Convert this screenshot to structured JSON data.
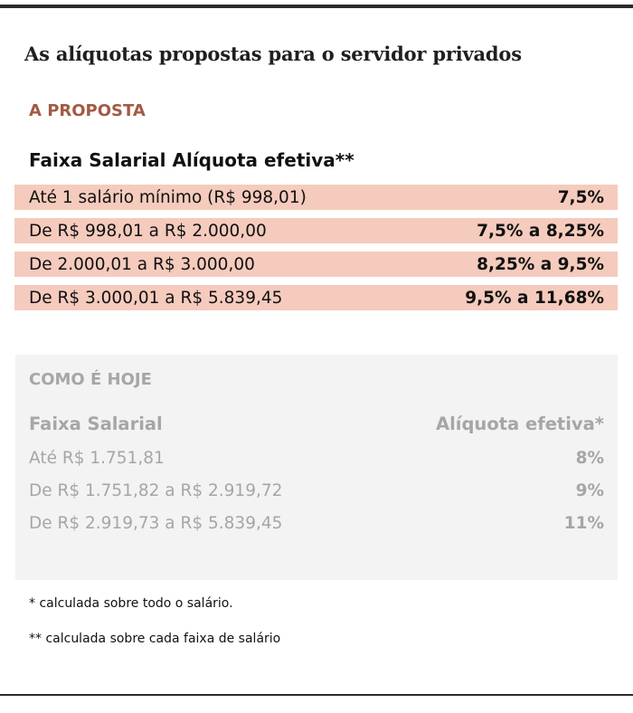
{
  "title": "As alíquotas propostas para o servidor privados",
  "proposal": {
    "label": "A PROPOSTA",
    "header": "Faixa Salarial Alíquota efetiva**",
    "rows": [
      {
        "range": "Até 1 salário mínimo (R$ 998,01)",
        "rate": "7,5%"
      },
      {
        "range": "De R$ 998,01 a R$ 2.000,00",
        "rate": "7,5% a 8,25%"
      },
      {
        "range": "De 2.000,01 a R$ 3.000,00",
        "rate": "8,25% a 9,5%"
      },
      {
        "range": "De R$ 3.000,01 a R$ 5.839,45",
        "rate": "9,5% a 11,68%"
      }
    ]
  },
  "today": {
    "label": "COMO É HOJE",
    "header_range": "Faixa Salarial",
    "header_rate": "Alíquota efetiva*",
    "rows": [
      {
        "range": "Até R$ 1.751,81",
        "rate": "8%"
      },
      {
        "range": "De R$ 1.751,82 a R$ 2.919,72",
        "rate": "9%"
      },
      {
        "range": "De R$ 2.919,73 a R$ 5.839,45",
        "rate": "11%"
      }
    ]
  },
  "notes": [
    "* calculada sobre todo o salário.",
    "** calculada sobre cada faixa de salário"
  ],
  "colors": {
    "accent": "#a35a45",
    "proposal_row_bg": "#f5cbbd",
    "today_box_bg": "#f3f3f3",
    "today_text": "#a6a6a6",
    "rule": "#2b2b2b"
  }
}
